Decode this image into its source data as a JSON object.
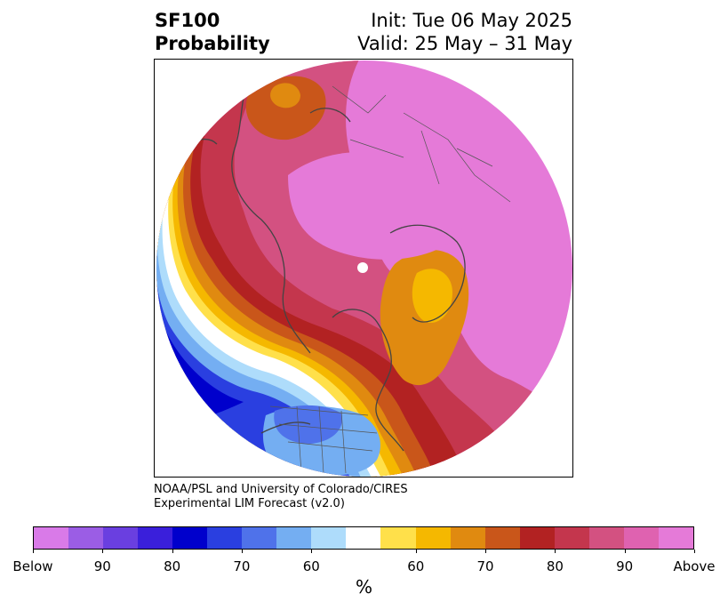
{
  "title": {
    "line1": "SF100",
    "line2": "Probability",
    "init": "Init: Tue 06 May 2025",
    "valid": "Valid: 25 May – 31 May"
  },
  "credit": {
    "line1": "NOAA/PSL and University of Colorado/CIRES",
    "line2": "Experimental LIM Forecast (v2.0)"
  },
  "colorbar": {
    "colors": [
      "#d97ae8",
      "#9b5de5",
      "#6a3fe0",
      "#3a1fdb",
      "#0000cc",
      "#2a3fe0",
      "#4f72ea",
      "#74aef2",
      "#aedcfb",
      "#ffffff",
      "#ffe04a",
      "#f5b800",
      "#e08a10",
      "#c9561a",
      "#b22222",
      "#c4364d",
      "#d35181",
      "#df62b0",
      "#e57ad8"
    ],
    "tick_labels": [
      "Below",
      "90",
      "80",
      "70",
      "60",
      "60",
      "70",
      "80",
      "90",
      "Above"
    ],
    "unit": "%"
  },
  "map": {
    "projection": "north-polar-stereographic",
    "features": [
      "coastlines",
      "country-borders",
      "state-borders",
      "probability-contours",
      "north-pole-mask"
    ]
  }
}
